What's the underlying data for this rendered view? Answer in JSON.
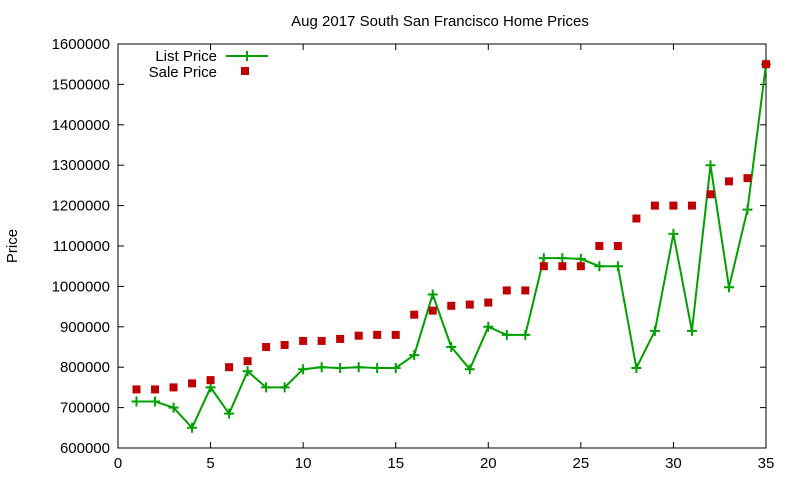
{
  "chart_data": {
    "type": "line",
    "title": "Aug 2017 South San Francisco Home Prices",
    "xlabel": "",
    "ylabel": "Price",
    "xlim": [
      0,
      35
    ],
    "ylim": [
      600000,
      1600000
    ],
    "x_ticks": [
      "0",
      "5",
      "10",
      "15",
      "20",
      "25",
      "30",
      "35"
    ],
    "y_ticks": [
      "600000",
      "700000",
      "800000",
      "900000",
      "1000000",
      "1100000",
      "1200000",
      "1300000",
      "1400000",
      "1500000",
      "1600000"
    ],
    "legend_position": "top-left",
    "grid": false,
    "series": [
      {
        "name": "List Price",
        "style": "line-with-plus-markers",
        "color": "#00a000",
        "x": [
          1,
          2,
          3,
          4,
          5,
          6,
          7,
          8,
          9,
          10,
          11,
          12,
          13,
          14,
          15,
          16,
          17,
          18,
          19,
          20,
          21,
          22,
          23,
          24,
          25,
          26,
          27,
          28,
          29,
          30,
          31,
          32,
          33,
          34,
          35
        ],
        "values": [
          715000,
          715000,
          700000,
          650000,
          750000,
          685000,
          790000,
          750000,
          750000,
          795000,
          800000,
          798000,
          800000,
          798000,
          798000,
          830000,
          980000,
          850000,
          795000,
          900000,
          880000,
          880000,
          1070000,
          1070000,
          1068000,
          1050000,
          1050000,
          798000,
          890000,
          1130000,
          890000,
          1300000,
          998000,
          1190000,
          1550000
        ]
      },
      {
        "name": "Sale Price",
        "style": "square-markers",
        "color": "#c00000",
        "x": [
          1,
          2,
          3,
          4,
          5,
          6,
          7,
          8,
          9,
          10,
          11,
          12,
          13,
          14,
          15,
          16,
          17,
          18,
          19,
          20,
          21,
          22,
          23,
          24,
          25,
          26,
          27,
          28,
          29,
          30,
          31,
          32,
          33,
          34,
          35
        ],
        "values": [
          745000,
          745000,
          750000,
          760000,
          768000,
          800000,
          815000,
          850000,
          855000,
          865000,
          865000,
          870000,
          878000,
          880000,
          880000,
          930000,
          940000,
          952000,
          955000,
          960000,
          990000,
          990000,
          1050000,
          1050000,
          1050000,
          1100000,
          1100000,
          1168000,
          1200000,
          1200000,
          1200000,
          1228000,
          1260000,
          1268000,
          1550000
        ]
      }
    ]
  }
}
